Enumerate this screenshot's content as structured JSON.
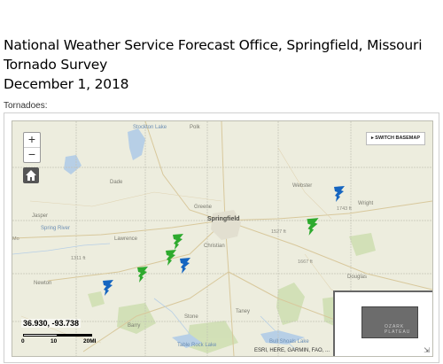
{
  "header": {
    "line1": "National Weather Service Forecast Office, Springfield, Missouri",
    "line2": "Tornado Survey",
    "line3": "December 1, 2018"
  },
  "map": {
    "tornadoes_label": "Tornadoes:",
    "zoom_in": "+",
    "zoom_out": "−",
    "basemap_button": "▸ SWITCH BASEMAP",
    "coordinates": "36.930, -93.738",
    "scale": {
      "ticks": [
        "0",
        "10",
        "20MI"
      ]
    },
    "attribution": "ESRI, HERE, GARMIN, FAO, ...",
    "overview_text": "OZARK PLATEAU",
    "place_labels": {
      "springfield": "Springfield",
      "stockton": "Stockton Lake",
      "polk": "Polk",
      "greene": "Greene",
      "lawrence": "Lawrence",
      "christian": "Christian",
      "wright": "Wright",
      "douglas": "Douglas",
      "taney": "Taney",
      "stone": "Stone",
      "barry": "Barry",
      "newton": "Newton",
      "jasper": "Jasper",
      "dade": "Dade",
      "webster": "Webster",
      "bull_shoals": "Bull Shoals Lake",
      "table_rock": "Table Rock Lake",
      "spring_river": "Spring River",
      "elev_1": "1743 ft",
      "elev_2": "1527 ft",
      "elev_3": "1667 ft",
      "elev_4": "1311 ft",
      "mo_label": "Mo"
    },
    "tornado_markers": [
      {
        "color": "#1565c0"
      },
      {
        "color": "#2eaa2e"
      },
      {
        "color": "#2eaa2e"
      },
      {
        "color": "#2eaa2e"
      },
      {
        "color": "#1565c0"
      },
      {
        "color": "#2eaa2e"
      },
      {
        "color": "#1565c0"
      }
    ]
  }
}
